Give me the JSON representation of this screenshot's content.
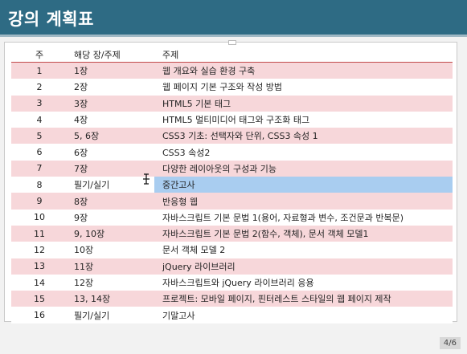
{
  "slide": {
    "title": "강의 계획표",
    "page": "4/6"
  },
  "table": {
    "headers": [
      "주",
      "해당 장/주제",
      "주제"
    ],
    "rows": [
      {
        "num": "1",
        "chapter": "1장",
        "topic": "웹 개요와 실습 환경 구축"
      },
      {
        "num": "2",
        "chapter": "2장",
        "topic": "웹 페이지 기본 구조와 작성 방법"
      },
      {
        "num": "3",
        "chapter": "3장",
        "topic": "HTML5 기본 태그"
      },
      {
        "num": "4",
        "chapter": "4장",
        "topic": "HTML5 멀티미디어 태그와 구조화 태그"
      },
      {
        "num": "5",
        "chapter": "5, 6장",
        "topic": "CSS3 기초: 선택자와 단위, CSS3 속성 1"
      },
      {
        "num": "6",
        "chapter": "6장",
        "topic": "CSS3 속성2"
      },
      {
        "num": "7",
        "chapter": "7장",
        "topic": "다양한 레이아웃의 구성과 기능"
      },
      {
        "num": "8",
        "chapter": "필기/실기",
        "topic": "중간고사"
      },
      {
        "num": "9",
        "chapter": "8장",
        "topic": "반응형 웹"
      },
      {
        "num": "10",
        "chapter": "9장",
        "topic": "자바스크립트 기본 문법 1(용어, 자료형과 변수, 조건문과 반복문)"
      },
      {
        "num": "11",
        "chapter": "9, 10장",
        "topic": "자바스크립트 기본 문법 2(함수, 객체), 문서 객체 모델1"
      },
      {
        "num": "12",
        "chapter": "10장",
        "topic": "문서 객체 모델 2"
      },
      {
        "num": "13",
        "chapter": "11장",
        "topic": "jQuery 라이브러리"
      },
      {
        "num": "14",
        "chapter": "12장",
        "topic": "자바스크립트와 jQuery 라이브러리 응용"
      },
      {
        "num": "15",
        "chapter": "13, 14장",
        "topic": "프로젝트: 모바일 페이지, 핀터레스트 스타일의 웹 페이지 제작"
      },
      {
        "num": "16",
        "chapter": "필기/실기",
        "topic": "기말고사"
      }
    ]
  },
  "icons": {
    "cursor": "text-select-cursor-icon"
  },
  "colors": {
    "header_bg": "#2e6b84",
    "row_stripe": "#f7d7da",
    "selected_cell": "#a9cdf0"
  }
}
